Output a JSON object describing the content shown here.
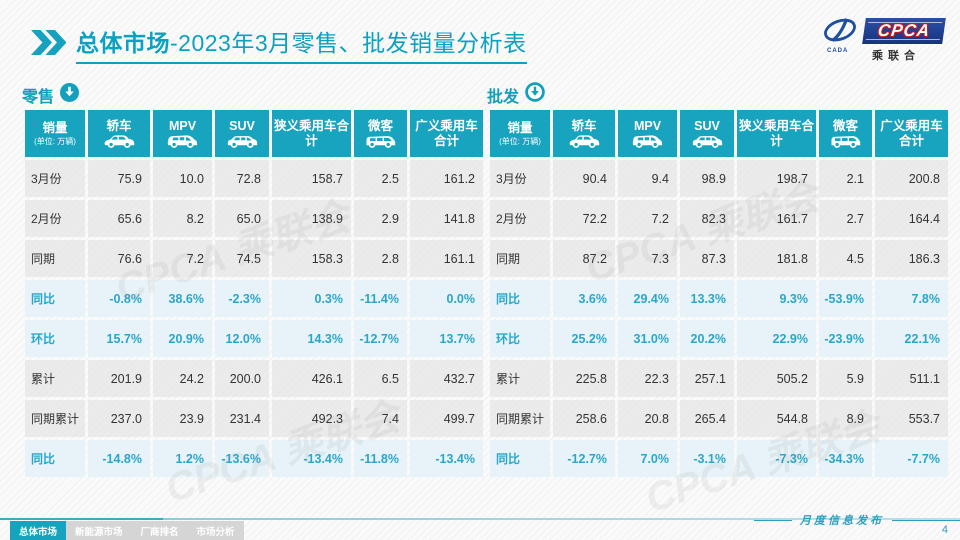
{
  "header": {
    "title_bold": "总体市场",
    "title_rest": "-2023年3月零售、批发销量分析表",
    "logo": {
      "cpca": "CPCA",
      "sub": "乘联合",
      "cada": "CADA"
    }
  },
  "columns": [
    {
      "label": "销量",
      "sublabel": "(单位: 万辆)",
      "icon": null
    },
    {
      "label": "轿车",
      "icon": "sedan-icon"
    },
    {
      "label": "MPV",
      "icon": "mpv-icon"
    },
    {
      "label": "SUV",
      "icon": "suv-icon"
    },
    {
      "label": "狭义乘用车合计",
      "icon": null
    },
    {
      "label": "微客",
      "icon": "microvan-icon"
    },
    {
      "label": "广义乘用车合计",
      "icon": null
    }
  ],
  "retail": {
    "section_label": "零售",
    "rows": [
      {
        "label": "3月份",
        "highlight": false,
        "values": [
          "75.9",
          "10.0",
          "72.8",
          "158.7",
          "2.5",
          "161.2"
        ]
      },
      {
        "label": "2月份",
        "highlight": false,
        "values": [
          "65.6",
          "8.2",
          "65.0",
          "138.9",
          "2.9",
          "141.8"
        ]
      },
      {
        "label": "同期",
        "highlight": false,
        "values": [
          "76.6",
          "7.2",
          "74.5",
          "158.3",
          "2.8",
          "161.1"
        ]
      },
      {
        "label": "同比",
        "highlight": true,
        "values": [
          "-0.8%",
          "38.6%",
          "-2.3%",
          "0.3%",
          "-11.4%",
          "0.0%"
        ]
      },
      {
        "label": "环比",
        "highlight": true,
        "values": [
          "15.7%",
          "20.9%",
          "12.0%",
          "14.3%",
          "-12.7%",
          "13.7%"
        ]
      },
      {
        "label": "累计",
        "highlight": false,
        "values": [
          "201.9",
          "24.2",
          "200.0",
          "426.1",
          "6.5",
          "432.7"
        ]
      },
      {
        "label": "同期累计",
        "highlight": false,
        "values": [
          "237.0",
          "23.9",
          "231.4",
          "492.3",
          "7.4",
          "499.7"
        ]
      },
      {
        "label": "同比",
        "highlight": true,
        "values": [
          "-14.8%",
          "1.2%",
          "-13.6%",
          "-13.4%",
          "-11.8%",
          "-13.4%"
        ]
      }
    ]
  },
  "wholesale": {
    "section_label": "批发",
    "rows": [
      {
        "label": "3月份",
        "highlight": false,
        "values": [
          "90.4",
          "9.4",
          "98.9",
          "198.7",
          "2.1",
          "200.8"
        ]
      },
      {
        "label": "2月份",
        "highlight": false,
        "values": [
          "72.2",
          "7.2",
          "82.3",
          "161.7",
          "2.7",
          "164.4"
        ]
      },
      {
        "label": "同期",
        "highlight": false,
        "values": [
          "87.2",
          "7.3",
          "87.3",
          "181.8",
          "4.5",
          "186.3"
        ]
      },
      {
        "label": "同比",
        "highlight": true,
        "values": [
          "3.6%",
          "29.4%",
          "13.3%",
          "9.3%",
          "-53.9%",
          "7.8%"
        ]
      },
      {
        "label": "环比",
        "highlight": true,
        "values": [
          "25.2%",
          "31.0%",
          "20.2%",
          "22.9%",
          "-23.9%",
          "22.1%"
        ]
      },
      {
        "label": "累计",
        "highlight": false,
        "values": [
          "225.8",
          "22.3",
          "257.1",
          "505.2",
          "5.9",
          "511.1"
        ]
      },
      {
        "label": "同期累计",
        "highlight": false,
        "values": [
          "258.6",
          "20.8",
          "265.4",
          "544.8",
          "8.9",
          "553.7"
        ]
      },
      {
        "label": "同比",
        "highlight": true,
        "values": [
          "-12.7%",
          "7.0%",
          "-3.1%",
          "-7.3%",
          "-34.3%",
          "-7.7%"
        ]
      }
    ]
  },
  "footer": {
    "tabs": [
      {
        "label": "总体市场",
        "active": true
      },
      {
        "label": "新能源市场",
        "active": false
      },
      {
        "label": "厂商排名",
        "active": false
      },
      {
        "label": "市场分析",
        "active": false
      }
    ],
    "release_label": "月度信息发布",
    "page_number": "4"
  },
  "colors": {
    "accent_teal": "#18A3BE",
    "title_teal": "#0AA2C0",
    "highlight_row_bg": "#E7F3F8",
    "highlight_text": "#29A7CB",
    "logo_blue": "#1E4FA0"
  }
}
